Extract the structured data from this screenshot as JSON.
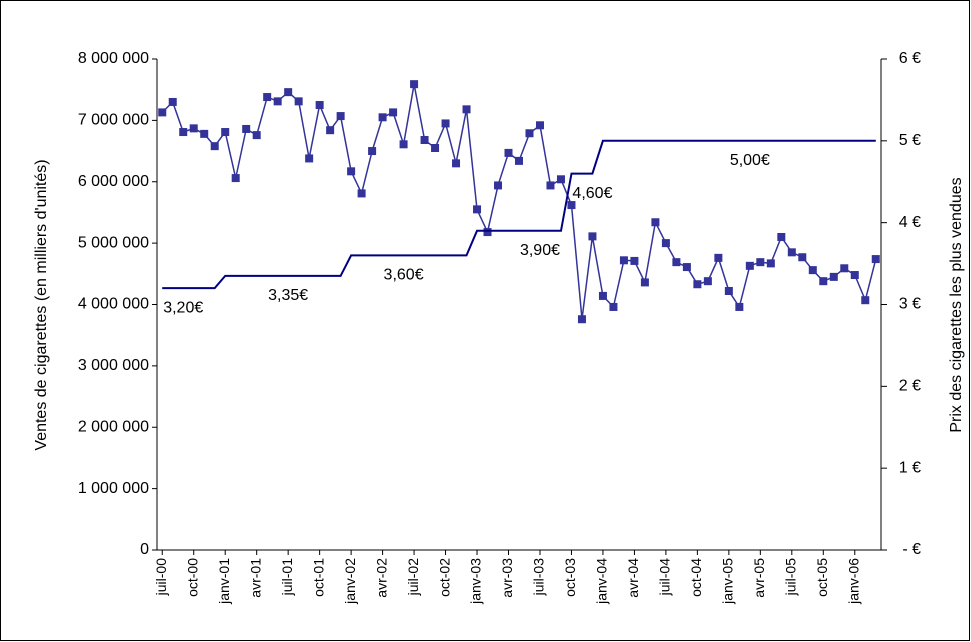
{
  "chart_data": {
    "type": "line",
    "y_label": "Ventes de cigarettes (en milliers d'unités)",
    "y2_label": "Prix des cigarettes les plus vendues",
    "categories": [
      "juil-00",
      null,
      null,
      "oct-00",
      null,
      null,
      "janv-01",
      null,
      null,
      "avr-01",
      null,
      null,
      "juil-01",
      null,
      null,
      "oct-01",
      null,
      null,
      "janv-02",
      null,
      null,
      "avr-02",
      null,
      null,
      "juil-02",
      null,
      null,
      "oct-02",
      null,
      null,
      "janv-03",
      null,
      null,
      "avr-03",
      null,
      null,
      "juil-03",
      null,
      null,
      "oct-03",
      null,
      null,
      "janv-04",
      null,
      null,
      "avr-04",
      null,
      null,
      "juil-04",
      null,
      null,
      "oct-04",
      null,
      null,
      "janv-05",
      null,
      null,
      "avr-05",
      null,
      null,
      "juil-05",
      null,
      null,
      "oct-05",
      null,
      null,
      "janv-06",
      null,
      null
    ],
    "series": [
      {
        "color": "#333399",
        "marker": "square",
        "values": [
          7130000,
          7300000,
          6810000,
          6870000,
          6780000,
          6580000,
          6810000,
          6060000,
          6860000,
          6760000,
          7380000,
          7310000,
          7460000,
          7310000,
          6380000,
          7250000,
          6840000,
          7070000,
          6170000,
          5810000,
          6500000,
          7050000,
          7130000,
          6610000,
          7590000,
          6680000,
          6550000,
          6950000,
          6300000,
          7180000,
          5550000,
          5180000,
          5940000,
          6470000,
          6340000,
          6790000,
          6920000,
          5940000,
          6040000,
          5620000,
          3760000,
          5110000,
          4140000,
          3960000,
          4720000,
          4710000,
          4360000,
          5340000,
          5000000,
          4690000,
          4610000,
          4330000,
          4380000,
          4760000,
          4220000,
          3960000,
          4630000,
          4690000,
          4670000,
          5100000,
          4850000,
          4770000,
          4560000,
          4380000,
          4450000,
          4590000,
          4480000,
          4070000,
          4740000
        ]
      },
      {
        "color": "#000080",
        "axis": "y2",
        "values": [
          3.2,
          3.2,
          3.2,
          3.2,
          3.2,
          3.2,
          3.35,
          3.35,
          3.35,
          3.35,
          3.35,
          3.35,
          3.35,
          3.35,
          3.35,
          3.35,
          3.35,
          3.35,
          3.6,
          3.6,
          3.6,
          3.6,
          3.6,
          3.6,
          3.6,
          3.6,
          3.6,
          3.6,
          3.6,
          3.6,
          3.9,
          3.9,
          3.9,
          3.9,
          3.9,
          3.9,
          3.9,
          3.9,
          3.9,
          4.6,
          4.6,
          4.6,
          5,
          5,
          5,
          5,
          5,
          5,
          5,
          5,
          5,
          5,
          5,
          5,
          5,
          5,
          5,
          5,
          5,
          5,
          5,
          5,
          5,
          5,
          5,
          5,
          5,
          5,
          5
        ],
        "value_labels": [
          null,
          null,
          "3,20€",
          null,
          null,
          null,
          null,
          null,
          null,
          null,
          null,
          null,
          "3,35€",
          null,
          null,
          null,
          null,
          null,
          null,
          null,
          null,
          null,
          null,
          "3,60€",
          null,
          null,
          null,
          null,
          null,
          null,
          null,
          null,
          null,
          null,
          null,
          null,
          "3,90€",
          null,
          null,
          null,
          null,
          "4,60€",
          null,
          null,
          null,
          null,
          null,
          null,
          null,
          null,
          null,
          null,
          null,
          null,
          null,
          null,
          "5,00€",
          null,
          null,
          null,
          null,
          null,
          null,
          null,
          null,
          null,
          null,
          null,
          null
        ]
      }
    ],
    "ylim": [
      0,
      8000000
    ],
    "yticks": [
      {
        "value": 0,
        "label": "0"
      },
      {
        "value": 1000000,
        "label": "1 000 000"
      },
      {
        "value": 2000000,
        "label": "2 000 000"
      },
      {
        "value": 3000000,
        "label": "3 000 000"
      },
      {
        "value": 4000000,
        "label": "4 000 000"
      },
      {
        "value": 5000000,
        "label": "5 000 000"
      },
      {
        "value": 6000000,
        "label": "6 000 000"
      },
      {
        "value": 7000000,
        "label": "7 000 000"
      },
      {
        "value": 8000000,
        "label": "8 000 000"
      }
    ],
    "y2lim": [
      0,
      6
    ],
    "y2ticks": [
      {
        "value": 0,
        "label": "- €"
      },
      {
        "value": 1,
        "label": "1 €"
      },
      {
        "value": 2,
        "label": "2 €"
      },
      {
        "value": 3,
        "label": "3 €"
      },
      {
        "value": 4,
        "label": "4 €"
      },
      {
        "value": 5,
        "label": "5 €"
      },
      {
        "value": 6,
        "label": "6 €"
      }
    ],
    "grid": false
  }
}
